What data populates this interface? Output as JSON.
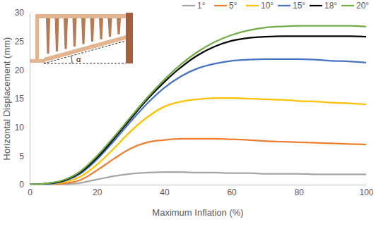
{
  "chart_data": {
    "type": "line",
    "x_label": "Maximum Inflation (%)",
    "y_label": "Horizontal Displacement (mm)",
    "annotations": [
      "α"
    ],
    "x": [
      0,
      5,
      10,
      15,
      20,
      25,
      30,
      35,
      40,
      45,
      50,
      55,
      60,
      65,
      70,
      75,
      80,
      85,
      90,
      95,
      100
    ],
    "series": [
      {
        "name": "1°",
        "color": "#a5a5a5",
        "values": [
          0,
          0,
          0.1,
          0.3,
          0.9,
          1.5,
          1.9,
          2.1,
          2.2,
          2.2,
          2.1,
          2.1,
          2.0,
          2.0,
          1.9,
          1.9,
          1.9,
          1.8,
          1.8,
          1.8,
          1.8
        ]
      },
      {
        "name": "5°",
        "color": "#ed7d31",
        "values": [
          0,
          0,
          0.2,
          0.8,
          2.5,
          4.5,
          6.3,
          7.4,
          7.8,
          8.0,
          8.0,
          8.0,
          7.9,
          7.8,
          7.6,
          7.5,
          7.4,
          7.3,
          7.2,
          7.1,
          7.0
        ]
      },
      {
        "name": "10°",
        "color": "#ffc000",
        "values": [
          0,
          0.1,
          0.4,
          1.4,
          3.5,
          6.3,
          9.3,
          11.8,
          13.6,
          14.5,
          14.9,
          15.1,
          15.1,
          15.0,
          14.9,
          14.8,
          14.6,
          14.5,
          14.3,
          14.2,
          14.0
        ]
      },
      {
        "name": "15°",
        "color": "#4472c4",
        "values": [
          0,
          0.1,
          0.6,
          1.9,
          4.4,
          7.6,
          11.0,
          14.2,
          16.9,
          18.9,
          20.3,
          21.1,
          21.6,
          21.8,
          21.9,
          21.9,
          21.9,
          21.8,
          21.6,
          21.5,
          21.3
        ]
      },
      {
        "name": "18°",
        "color": "#000000",
        "values": [
          0,
          0.2,
          0.7,
          2.1,
          4.7,
          8.0,
          11.5,
          14.9,
          17.9,
          20.5,
          22.6,
          24.1,
          25.1,
          25.6,
          25.8,
          25.9,
          25.9,
          25.9,
          25.9,
          25.9,
          25.8
        ]
      },
      {
        "name": "20°",
        "color": "#70ad47",
        "values": [
          0,
          0.2,
          0.8,
          2.3,
          5.0,
          8.3,
          11.8,
          15.2,
          18.3,
          21.0,
          23.2,
          24.9,
          26.1,
          26.9,
          27.4,
          27.6,
          27.7,
          27.7,
          27.7,
          27.7,
          27.6
        ]
      }
    ],
    "xlim": [
      0,
      100
    ],
    "xticks": [
      0,
      20,
      40,
      60,
      80,
      100
    ],
    "ylim": [
      0,
      30
    ],
    "yticks": [
      0,
      5,
      10,
      15,
      20,
      25,
      30
    ],
    "grid": false,
    "legend": "top"
  }
}
